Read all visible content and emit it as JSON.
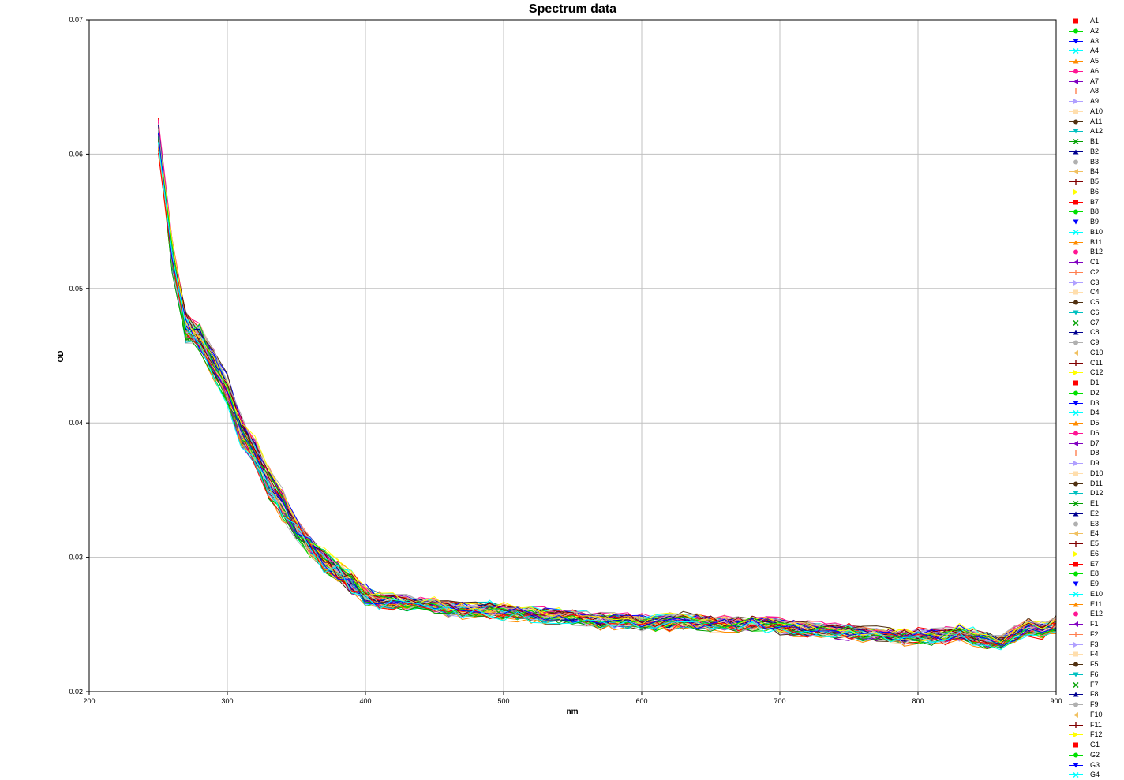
{
  "chart_data": {
    "type": "line",
    "title": "Spectrum data",
    "xlabel": "nm",
    "ylabel": "OD",
    "xlim": [
      200,
      900
    ],
    "ylim": [
      0.02,
      0.07
    ],
    "xticks": [
      "200",
      "300",
      "400",
      "500",
      "600",
      "700",
      "800",
      "900"
    ],
    "yticks": [
      "0.02",
      "0.03",
      "0.04",
      "0.05",
      "0.06",
      "0.07"
    ],
    "grid": true,
    "legend_position": "right",
    "x": [
      250,
      260,
      270,
      280,
      290,
      300,
      310,
      320,
      330,
      340,
      350,
      360,
      370,
      380,
      390,
      400,
      410,
      420,
      430,
      440,
      450,
      460,
      470,
      480,
      490,
      500,
      510,
      520,
      530,
      540,
      550,
      560,
      570,
      580,
      590,
      600,
      610,
      620,
      630,
      640,
      650,
      660,
      670,
      680,
      690,
      700,
      710,
      720,
      730,
      740,
      750,
      760,
      770,
      780,
      790,
      800,
      810,
      820,
      830,
      840,
      850,
      860,
      870,
      880,
      890,
      900
    ],
    "mean_curve": [
      0.0615,
      0.0525,
      0.0472,
      0.0465,
      0.0445,
      0.0425,
      0.0395,
      0.0378,
      0.0355,
      0.034,
      0.0322,
      0.0308,
      0.0298,
      0.029,
      0.0282,
      0.0272,
      0.0268,
      0.0267,
      0.0266,
      0.0266,
      0.0265,
      0.0262,
      0.0261,
      0.0261,
      0.0261,
      0.026,
      0.0259,
      0.0258,
      0.0257,
      0.0257,
      0.0256,
      0.0254,
      0.0253,
      0.0253,
      0.0253,
      0.0252,
      0.0251,
      0.0252,
      0.0253,
      0.0252,
      0.0251,
      0.0251,
      0.025,
      0.0251,
      0.0251,
      0.0249,
      0.0248,
      0.0247,
      0.0246,
      0.0245,
      0.0245,
      0.0244,
      0.0243,
      0.0242,
      0.0241,
      0.0242,
      0.0241,
      0.0242,
      0.0244,
      0.0241,
      0.0238,
      0.0238,
      0.0243,
      0.0248,
      0.0246,
      0.025
    ],
    "series": [
      {
        "name": "A1",
        "color": "#ff0000",
        "marker": "square"
      },
      {
        "name": "A2",
        "color": "#00e000",
        "marker": "circle"
      },
      {
        "name": "A3",
        "color": "#0000ff",
        "marker": "triangle-down"
      },
      {
        "name": "A4",
        "color": "#00ffff",
        "marker": "x"
      },
      {
        "name": "A5",
        "color": "#ff8c00",
        "marker": "triangle-up"
      },
      {
        "name": "A6",
        "color": "#ff1493",
        "marker": "circle"
      },
      {
        "name": "A7",
        "color": "#8000c0",
        "marker": "triangle-left"
      },
      {
        "name": "A8",
        "color": "#ff7f50",
        "marker": "plus"
      },
      {
        "name": "A9",
        "color": "#b0a0ff",
        "marker": "triangle-right"
      },
      {
        "name": "A10",
        "color": "#ffdead",
        "marker": "square"
      },
      {
        "name": "A11",
        "color": "#503010",
        "marker": "circle"
      },
      {
        "name": "A12",
        "color": "#00c0c0",
        "marker": "triangle-down"
      },
      {
        "name": "B1",
        "color": "#00a000",
        "marker": "x"
      },
      {
        "name": "B2",
        "color": "#000090",
        "marker": "triangle-up"
      },
      {
        "name": "B3",
        "color": "#b0b0b0",
        "marker": "circle"
      },
      {
        "name": "B4",
        "color": "#f0c060",
        "marker": "triangle-left"
      },
      {
        "name": "B5",
        "color": "#800000",
        "marker": "plus"
      },
      {
        "name": "B6",
        "color": "#ffff00",
        "marker": "triangle-right"
      },
      {
        "name": "B7",
        "color": "#ff0000",
        "marker": "square"
      },
      {
        "name": "B8",
        "color": "#00e000",
        "marker": "circle"
      },
      {
        "name": "B9",
        "color": "#0000ff",
        "marker": "triangle-down"
      },
      {
        "name": "B10",
        "color": "#00ffff",
        "marker": "x"
      },
      {
        "name": "B11",
        "color": "#ff8c00",
        "marker": "triangle-up"
      },
      {
        "name": "B12",
        "color": "#ff1493",
        "marker": "circle"
      },
      {
        "name": "C1",
        "color": "#8000c0",
        "marker": "triangle-left"
      },
      {
        "name": "C2",
        "color": "#ff7f50",
        "marker": "plus"
      },
      {
        "name": "C3",
        "color": "#b0a0ff",
        "marker": "triangle-right"
      },
      {
        "name": "C4",
        "color": "#ffdead",
        "marker": "square"
      },
      {
        "name": "C5",
        "color": "#503010",
        "marker": "circle"
      },
      {
        "name": "C6",
        "color": "#00c0c0",
        "marker": "triangle-down"
      },
      {
        "name": "C7",
        "color": "#00a000",
        "marker": "x"
      },
      {
        "name": "C8",
        "color": "#000090",
        "marker": "triangle-up"
      },
      {
        "name": "C9",
        "color": "#b0b0b0",
        "marker": "circle"
      },
      {
        "name": "C10",
        "color": "#f0c060",
        "marker": "triangle-left"
      },
      {
        "name": "C11",
        "color": "#800000",
        "marker": "plus"
      },
      {
        "name": "C12",
        "color": "#ffff00",
        "marker": "triangle-right"
      },
      {
        "name": "D1",
        "color": "#ff0000",
        "marker": "square"
      },
      {
        "name": "D2",
        "color": "#00e000",
        "marker": "circle"
      },
      {
        "name": "D3",
        "color": "#0000ff",
        "marker": "triangle-down"
      },
      {
        "name": "D4",
        "color": "#00ffff",
        "marker": "x"
      },
      {
        "name": "D5",
        "color": "#ff8c00",
        "marker": "triangle-up"
      },
      {
        "name": "D6",
        "color": "#ff1493",
        "marker": "circle"
      },
      {
        "name": "D7",
        "color": "#8000c0",
        "marker": "triangle-left"
      },
      {
        "name": "D8",
        "color": "#ff7f50",
        "marker": "plus"
      },
      {
        "name": "D9",
        "color": "#b0a0ff",
        "marker": "triangle-right"
      },
      {
        "name": "D10",
        "color": "#ffdead",
        "marker": "square"
      },
      {
        "name": "D11",
        "color": "#503010",
        "marker": "circle"
      },
      {
        "name": "D12",
        "color": "#00c0c0",
        "marker": "triangle-down"
      },
      {
        "name": "E1",
        "color": "#00a000",
        "marker": "x"
      },
      {
        "name": "E2",
        "color": "#000090",
        "marker": "triangle-up"
      },
      {
        "name": "E3",
        "color": "#b0b0b0",
        "marker": "circle"
      },
      {
        "name": "E4",
        "color": "#f0c060",
        "marker": "triangle-left"
      },
      {
        "name": "E5",
        "color": "#800000",
        "marker": "plus"
      },
      {
        "name": "E6",
        "color": "#ffff00",
        "marker": "triangle-right"
      },
      {
        "name": "E7",
        "color": "#ff0000",
        "marker": "square"
      },
      {
        "name": "E8",
        "color": "#00e000",
        "marker": "circle"
      },
      {
        "name": "E9",
        "color": "#0000ff",
        "marker": "triangle-down"
      },
      {
        "name": "E10",
        "color": "#00ffff",
        "marker": "x"
      },
      {
        "name": "E11",
        "color": "#ff8c00",
        "marker": "triangle-up"
      },
      {
        "name": "E12",
        "color": "#ff1493",
        "marker": "circle"
      },
      {
        "name": "F1",
        "color": "#8000c0",
        "marker": "triangle-left"
      },
      {
        "name": "F2",
        "color": "#ff7f50",
        "marker": "plus"
      },
      {
        "name": "F3",
        "color": "#b0a0ff",
        "marker": "triangle-right"
      },
      {
        "name": "F4",
        "color": "#ffdead",
        "marker": "square"
      },
      {
        "name": "F5",
        "color": "#503010",
        "marker": "circle"
      },
      {
        "name": "F6",
        "color": "#00c0c0",
        "marker": "triangle-down"
      },
      {
        "name": "F7",
        "color": "#00a000",
        "marker": "x"
      },
      {
        "name": "F8",
        "color": "#000090",
        "marker": "triangle-up"
      },
      {
        "name": "F9",
        "color": "#b0b0b0",
        "marker": "circle"
      },
      {
        "name": "F10",
        "color": "#f0c060",
        "marker": "triangle-left"
      },
      {
        "name": "F11",
        "color": "#800000",
        "marker": "plus"
      },
      {
        "name": "F12",
        "color": "#ffff00",
        "marker": "triangle-right"
      },
      {
        "name": "G1",
        "color": "#ff0000",
        "marker": "square"
      },
      {
        "name": "G2",
        "color": "#00e000",
        "marker": "circle"
      },
      {
        "name": "G3",
        "color": "#0000ff",
        "marker": "triangle-down"
      },
      {
        "name": "G4",
        "color": "#00ffff",
        "marker": "x"
      }
    ]
  }
}
